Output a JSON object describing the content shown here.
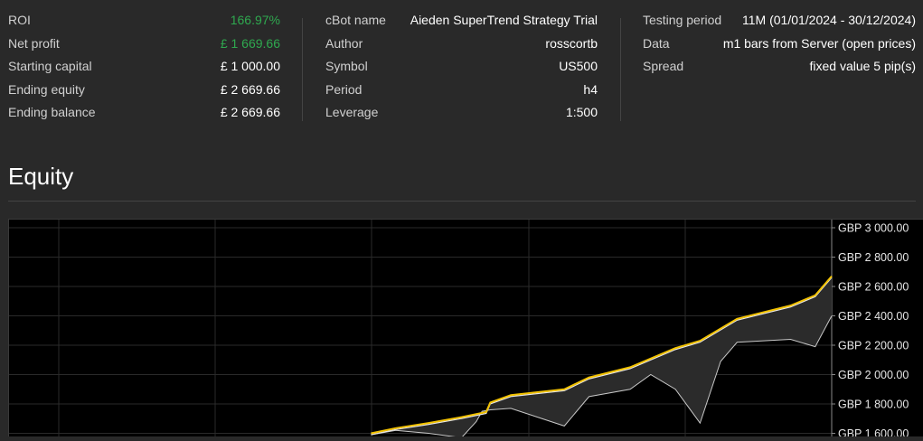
{
  "summary": {
    "col1": [
      {
        "label": "ROI",
        "value": "166.97%",
        "green": true
      },
      {
        "label": "Net profit",
        "value": "£ 1 669.66",
        "green": true
      },
      {
        "label": "Starting capital",
        "value": "£ 1 000.00",
        "green": false
      },
      {
        "label": "Ending equity",
        "value": "£ 2 669.66",
        "green": false
      },
      {
        "label": "Ending balance",
        "value": "£ 2 669.66",
        "green": false
      }
    ],
    "col2": [
      {
        "label": "cBot name",
        "value": "Aieden SuperTrend Strategy Trial"
      },
      {
        "label": "Author",
        "value": "rosscortb"
      },
      {
        "label": "Symbol",
        "value": "US500"
      },
      {
        "label": "Period",
        "value": "h4"
      },
      {
        "label": "Leverage",
        "value": "1:500"
      }
    ],
    "col3": [
      {
        "label": "Testing period",
        "value": "11M (01/01/2024 - 30/12/2024)"
      },
      {
        "label": "Data",
        "value": "m1 bars from Server (open prices)"
      },
      {
        "label": "Spread",
        "value": "fixed value 5 pip(s)"
      }
    ]
  },
  "equity_section": {
    "title": "Equity"
  },
  "colors": {
    "green": "#2fa84f",
    "balance_line": "#f2c200",
    "equity_line": "#c8c8c8",
    "chart_bg": "#000000",
    "page_bg": "#292929"
  },
  "chart_data": {
    "type": "area",
    "title": "Equity",
    "xlabel": "",
    "ylabel": "",
    "ylim": [
      1600,
      3000
    ],
    "yticks": [
      1600,
      1800,
      2000,
      2200,
      2400,
      2600,
      2800,
      3000
    ],
    "ytick_labels": [
      "GBP 1 600.00",
      "GBP 1 800.00",
      "GBP 2 000.00",
      "GBP 2 200.00",
      "GBP 2 400.00",
      "GBP 2 600.00",
      "GBP 2 800.00",
      "GBP 3 000.00"
    ],
    "grid": true,
    "series": [
      {
        "x": [
          0.44,
          0.47,
          0.51,
          0.55,
          0.58,
          0.585,
          0.61,
          0.675,
          0.705,
          0.755,
          0.81,
          0.84,
          0.885,
          0.95,
          0.98,
          1.0
        ],
        "y": [
          1600,
          1635,
          1670,
          1710,
          1745,
          1810,
          1860,
          1900,
          1980,
          2050,
          2180,
          2230,
          2380,
          2470,
          2540,
          2670
        ]
      },
      {
        "x": [
          0.44,
          0.47,
          0.51,
          0.55,
          0.568,
          0.575,
          0.585,
          0.61,
          0.675,
          0.705,
          0.755,
          0.78,
          0.81,
          0.84,
          0.865,
          0.885,
          0.95,
          0.98,
          1.0
        ],
        "y": [
          1590,
          1620,
          1600,
          1570,
          1680,
          1750,
          1760,
          1770,
          1650,
          1850,
          1900,
          2000,
          1900,
          1670,
          2090,
          2220,
          2240,
          2190,
          2400
        ]
      }
    ]
  }
}
